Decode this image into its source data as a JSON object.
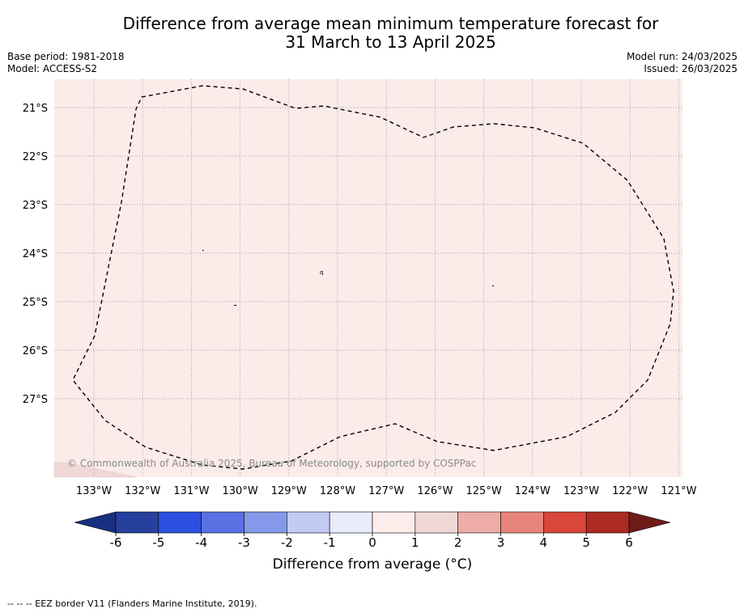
{
  "title_line1": "Difference from average mean minimum temperature forecast for",
  "title_line2": "31 March to 13 April 2025",
  "base_period": "Base period: 1981-2018",
  "model": "Model: ACCESS-S2",
  "model_run": "Model run: 24/03/2025",
  "issued": "Issued: 26/03/2025",
  "lat_labels": [
    "21°S",
    "22°S",
    "23°S",
    "24°S",
    "25°S",
    "26°S",
    "27°S"
  ],
  "lon_labels": [
    "133°W",
    "132°W",
    "131°W",
    "130°W",
    "129°W",
    "128°W",
    "127°W",
    "126°W",
    "125°W",
    "124°W",
    "123°W",
    "122°W",
    "121°W"
  ],
  "copyright": "© Commonwealth of Australia 2025, Bureau of Meteorology, supported by COSPPac",
  "colorbar": {
    "title": "Difference from average (°C)",
    "ticks": [
      "-6",
      "-5",
      "-4",
      "-3",
      "-2",
      "-1",
      "0",
      "1",
      "2",
      "3",
      "4",
      "5",
      "6"
    ],
    "colors": [
      "#26409e",
      "#2e50e0",
      "#5a71e3",
      "#8599ea",
      "#c3cbf4",
      "#e8ecfb",
      "#fcecea",
      "#efd8d7",
      "#eeaca6",
      "#e7857c",
      "#d9473a",
      "#ab2a22"
    ],
    "under_color": "#172f7e",
    "over_color": "#6d1c18"
  },
  "map_fill_color": "#fbecea",
  "footer": "--  --  -- EEZ border V11 (Flanders Marine Institute, 2019)."
}
